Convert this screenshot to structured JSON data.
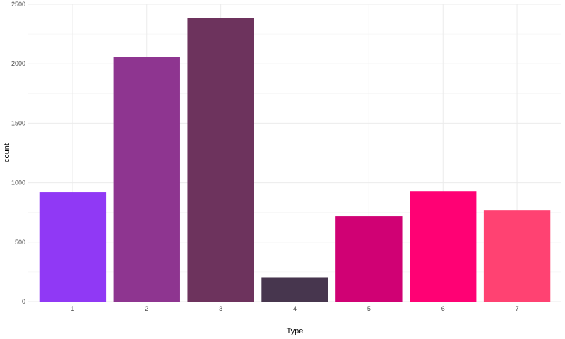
{
  "chart_data": {
    "type": "bar",
    "categories": [
      "1",
      "2",
      "3",
      "4",
      "5",
      "6",
      "7"
    ],
    "values": [
      920,
      2060,
      2385,
      205,
      718,
      925,
      765
    ],
    "colors": [
      "#9039F5",
      "#8E3590",
      "#6D335D",
      "#47364E",
      "#D00174",
      "#FF0174",
      "#FF4272"
    ],
    "xlabel": "Type",
    "ylabel": "count",
    "ylim": [
      0,
      2500
    ],
    "yticks": [
      0,
      500,
      1000,
      1500,
      2000,
      2500
    ],
    "ytick_labels": [
      "0",
      "500",
      "1000",
      "1500",
      "2000",
      "2500"
    ],
    "grid": true,
    "legend": "none"
  }
}
